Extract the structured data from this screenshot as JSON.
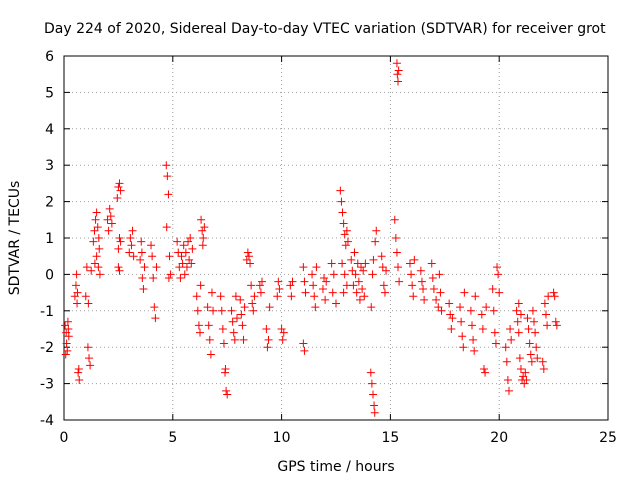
{
  "chart_data": {
    "type": "scatter",
    "title": "Day 224 of 2020, Sidereal Day-to-day VTEC variation (SDTVAR) for receiver grot",
    "xlabel": "GPS time / hours",
    "ylabel": "SDTVAR / TECUs",
    "xlim": [
      0,
      25
    ],
    "ylim": [
      -4,
      6
    ],
    "xticks": [
      0,
      5,
      10,
      15,
      20,
      25
    ],
    "yticks": [
      -4,
      -3,
      -2,
      -1,
      0,
      1,
      2,
      3,
      4,
      5,
      6
    ],
    "grid": true,
    "marker": "+",
    "color": "#ff0000",
    "series": [
      {
        "name": "SDTVAR",
        "points": [
          [
            0.05,
            -1.4
          ],
          [
            0.1,
            -1.6
          ],
          [
            0.12,
            -1.9
          ],
          [
            0.15,
            -2.1
          ],
          [
            0.18,
            -1.3
          ],
          [
            0.2,
            -1.5
          ],
          [
            0.08,
            -2.2
          ],
          [
            0.22,
            -1.7
          ],
          [
            0.5,
            -0.6
          ],
          [
            0.55,
            -0.3
          ],
          [
            0.6,
            -0.8
          ],
          [
            0.62,
            -0.5
          ],
          [
            0.65,
            -2.7
          ],
          [
            0.7,
            -2.9
          ],
          [
            0.68,
            -2.6
          ],
          [
            0.58,
            0.0
          ],
          [
            1.0,
            -0.6
          ],
          [
            1.05,
            0.2
          ],
          [
            1.1,
            -2.0
          ],
          [
            1.15,
            -2.3
          ],
          [
            1.2,
            -2.5
          ],
          [
            1.12,
            -0.8
          ],
          [
            1.25,
            0.1
          ],
          [
            1.35,
            0.9
          ],
          [
            1.4,
            1.2
          ],
          [
            1.45,
            1.5
          ],
          [
            1.5,
            1.7
          ],
          [
            1.55,
            1.3
          ],
          [
            1.6,
            1.0
          ],
          [
            1.42,
            0.3
          ],
          [
            1.5,
            0.5
          ],
          [
            1.58,
            0.2
          ],
          [
            1.62,
            0.7
          ],
          [
            1.65,
            0.0
          ],
          [
            2.0,
            1.5
          ],
          [
            2.05,
            1.2
          ],
          [
            2.1,
            1.8
          ],
          [
            2.15,
            1.6
          ],
          [
            2.2,
            1.4
          ],
          [
            2.5,
            2.4
          ],
          [
            2.55,
            2.5
          ],
          [
            2.6,
            2.3
          ],
          [
            2.45,
            2.1
          ],
          [
            2.5,
            0.7
          ],
          [
            2.55,
            1.0
          ],
          [
            2.6,
            0.9
          ],
          [
            2.5,
            0.2
          ],
          [
            2.55,
            0.1
          ],
          [
            3.0,
            0.6
          ],
          [
            3.05,
            1.0
          ],
          [
            3.1,
            0.8
          ],
          [
            3.15,
            1.2
          ],
          [
            3.2,
            0.5
          ],
          [
            3.5,
            0.4
          ],
          [
            3.55,
            0.9
          ],
          [
            3.6,
            -0.1
          ],
          [
            3.65,
            -0.4
          ],
          [
            3.7,
            0.2
          ],
          [
            3.58,
            0.6
          ],
          [
            4.0,
            0.8
          ],
          [
            4.05,
            0.5
          ],
          [
            4.1,
            -0.1
          ],
          [
            4.15,
            -0.9
          ],
          [
            4.2,
            -1.2
          ],
          [
            4.25,
            0.2
          ],
          [
            4.7,
            3.0
          ],
          [
            4.75,
            2.7
          ],
          [
            4.8,
            2.2
          ],
          [
            4.72,
            1.3
          ],
          [
            4.85,
            0.5
          ],
          [
            4.9,
            0.0
          ],
          [
            4.82,
            -0.1
          ],
          [
            5.2,
            0.9
          ],
          [
            5.25,
            0.6
          ],
          [
            5.3,
            0.2
          ],
          [
            5.35,
            -0.1
          ],
          [
            5.4,
            0.5
          ],
          [
            5.45,
            0.3
          ],
          [
            5.5,
            0.8
          ],
          [
            5.55,
            0.0
          ],
          [
            5.6,
            0.6
          ],
          [
            5.65,
            0.2
          ],
          [
            5.7,
            0.9
          ],
          [
            5.75,
            0.4
          ],
          [
            5.8,
            1.0
          ],
          [
            5.85,
            0.3
          ],
          [
            5.9,
            0.7
          ],
          [
            6.3,
            1.5
          ],
          [
            6.35,
            1.2
          ],
          [
            6.4,
            1.0
          ],
          [
            6.38,
            0.8
          ],
          [
            6.45,
            1.3
          ],
          [
            6.1,
            -0.6
          ],
          [
            6.15,
            -1.0
          ],
          [
            6.2,
            -1.4
          ],
          [
            6.25,
            -1.6
          ],
          [
            6.28,
            -0.3
          ],
          [
            6.6,
            -0.9
          ],
          [
            6.65,
            -1.4
          ],
          [
            6.7,
            -1.8
          ],
          [
            6.75,
            -2.2
          ],
          [
            6.8,
            -0.5
          ],
          [
            6.85,
            -1.0
          ],
          [
            7.2,
            -0.6
          ],
          [
            7.25,
            -1.0
          ],
          [
            7.3,
            -1.5
          ],
          [
            7.35,
            -1.9
          ],
          [
            7.4,
            -2.7
          ],
          [
            7.45,
            -3.2
          ],
          [
            7.5,
            -3.3
          ],
          [
            7.42,
            -2.6
          ],
          [
            7.7,
            -1.0
          ],
          [
            7.75,
            -1.3
          ],
          [
            7.8,
            -1.6
          ],
          [
            7.85,
            -1.8
          ],
          [
            7.9,
            -0.6
          ],
          [
            7.95,
            -1.2
          ],
          [
            8.1,
            -0.7
          ],
          [
            8.15,
            -1.1
          ],
          [
            8.2,
            -1.4
          ],
          [
            8.25,
            -1.8
          ],
          [
            8.3,
            -0.9
          ],
          [
            8.4,
            0.4
          ],
          [
            8.45,
            0.6
          ],
          [
            8.5,
            0.5
          ],
          [
            8.55,
            0.3
          ],
          [
            8.6,
            -0.3
          ],
          [
            8.65,
            -0.8
          ],
          [
            8.7,
            -1.0
          ],
          [
            8.75,
            -0.6
          ],
          [
            9.0,
            -0.3
          ],
          [
            9.05,
            -0.5
          ],
          [
            9.1,
            -0.2
          ],
          [
            9.3,
            -1.5
          ],
          [
            9.35,
            -2.0
          ],
          [
            9.4,
            -1.8
          ],
          [
            9.45,
            -0.9
          ],
          [
            9.8,
            -0.6
          ],
          [
            9.85,
            -0.2
          ],
          [
            9.9,
            -0.4
          ],
          [
            10.0,
            -1.5
          ],
          [
            10.05,
            -1.8
          ],
          [
            10.1,
            -1.6
          ],
          [
            10.4,
            -0.3
          ],
          [
            10.45,
            -0.6
          ],
          [
            10.5,
            -0.2
          ],
          [
            11.0,
            0.2
          ],
          [
            11.05,
            -0.2
          ],
          [
            11.1,
            -0.5
          ],
          [
            11.0,
            -1.9
          ],
          [
            11.05,
            -2.1
          ],
          [
            11.4,
            0.0
          ],
          [
            11.45,
            -0.3
          ],
          [
            11.5,
            -0.6
          ],
          [
            11.55,
            -0.9
          ],
          [
            11.6,
            0.2
          ],
          [
            11.9,
            -0.4
          ],
          [
            11.95,
            -0.1
          ],
          [
            12.0,
            -0.7
          ],
          [
            12.05,
            -0.2
          ],
          [
            12.3,
            0.3
          ],
          [
            12.35,
            -0.5
          ],
          [
            12.4,
            0.0
          ],
          [
            12.5,
            -0.8
          ],
          [
            12.7,
            2.3
          ],
          [
            12.75,
            2.0
          ],
          [
            12.8,
            1.7
          ],
          [
            12.85,
            1.4
          ],
          [
            12.9,
            1.1
          ],
          [
            12.95,
            0.8
          ],
          [
            13.0,
            1.2
          ],
          [
            13.05,
            0.9
          ],
          [
            12.78,
            0.3
          ],
          [
            12.9,
            0.0
          ],
          [
            13.0,
            -0.3
          ],
          [
            12.85,
            -0.5
          ],
          [
            13.2,
            0.4
          ],
          [
            13.25,
            0.1
          ],
          [
            13.3,
            -0.3
          ],
          [
            13.35,
            0.6
          ],
          [
            13.4,
            0.0
          ],
          [
            13.45,
            -0.5
          ],
          [
            13.5,
            0.3
          ],
          [
            13.55,
            -0.2
          ],
          [
            13.6,
            -0.7
          ],
          [
            13.65,
            0.2
          ],
          [
            13.7,
            -0.4
          ],
          [
            13.75,
            0.1
          ],
          [
            13.8,
            -0.6
          ],
          [
            13.85,
            0.3
          ],
          [
            14.1,
            -2.7
          ],
          [
            14.15,
            -3.0
          ],
          [
            14.2,
            -3.3
          ],
          [
            14.25,
            -3.6
          ],
          [
            14.28,
            -3.8
          ],
          [
            14.12,
            -0.9
          ],
          [
            14.18,
            0.0
          ],
          [
            14.22,
            0.4
          ],
          [
            14.3,
            0.9
          ],
          [
            14.35,
            1.2
          ],
          [
            14.6,
            0.5
          ],
          [
            14.65,
            0.2
          ],
          [
            14.7,
            -0.3
          ],
          [
            14.75,
            -0.5
          ],
          [
            14.8,
            0.1
          ],
          [
            15.2,
            1.5
          ],
          [
            15.25,
            1.0
          ],
          [
            15.3,
            0.6
          ],
          [
            15.35,
            0.2
          ],
          [
            15.4,
            -0.2
          ],
          [
            15.3,
            5.8
          ],
          [
            15.32,
            5.5
          ],
          [
            15.35,
            5.3
          ],
          [
            15.38,
            5.6
          ],
          [
            15.9,
            0.3
          ],
          [
            15.95,
            0.0
          ],
          [
            16.0,
            -0.3
          ],
          [
            16.05,
            -0.6
          ],
          [
            16.1,
            0.4
          ],
          [
            16.4,
            0.1
          ],
          [
            16.45,
            -0.2
          ],
          [
            16.5,
            -0.4
          ],
          [
            16.55,
            -0.7
          ],
          [
            16.9,
            0.3
          ],
          [
            16.95,
            -0.1
          ],
          [
            17.0,
            -0.4
          ],
          [
            17.1,
            -0.7
          ],
          [
            17.2,
            -0.9
          ],
          [
            17.25,
            0.0
          ],
          [
            17.3,
            -0.5
          ],
          [
            17.35,
            -1.0
          ],
          [
            17.7,
            -0.8
          ],
          [
            17.75,
            -1.1
          ],
          [
            17.8,
            -1.5
          ],
          [
            17.85,
            -1.2
          ],
          [
            18.2,
            -0.9
          ],
          [
            18.25,
            -1.3
          ],
          [
            18.3,
            -1.7
          ],
          [
            18.35,
            -2.0
          ],
          [
            18.4,
            -0.5
          ],
          [
            18.7,
            -1.0
          ],
          [
            18.75,
            -1.4
          ],
          [
            18.8,
            -1.8
          ],
          [
            18.85,
            -2.1
          ],
          [
            18.9,
            -0.6
          ],
          [
            19.2,
            -1.1
          ],
          [
            19.25,
            -1.5
          ],
          [
            19.3,
            -2.6
          ],
          [
            19.35,
            -2.7
          ],
          [
            19.4,
            -0.9
          ],
          [
            19.7,
            -0.4
          ],
          [
            19.75,
            -1.0
          ],
          [
            19.8,
            -1.6
          ],
          [
            19.85,
            -1.9
          ],
          [
            19.9,
            0.2
          ],
          [
            19.95,
            0.0
          ],
          [
            20.0,
            -0.5
          ],
          [
            20.3,
            -2.0
          ],
          [
            20.35,
            -2.4
          ],
          [
            20.4,
            -2.9
          ],
          [
            20.45,
            -3.2
          ],
          [
            20.5,
            -1.5
          ],
          [
            20.55,
            -1.8
          ],
          [
            20.8,
            -1.0
          ],
          [
            20.85,
            -1.3
          ],
          [
            20.9,
            -1.6
          ],
          [
            20.95,
            -2.3
          ],
          [
            21.0,
            -2.6
          ],
          [
            21.05,
            -2.9
          ],
          [
            21.1,
            -2.8
          ],
          [
            21.15,
            -3.0
          ],
          [
            21.2,
            -2.7
          ],
          [
            21.25,
            -2.9
          ],
          [
            20.9,
            -0.8
          ],
          [
            21.0,
            -1.1
          ],
          [
            21.3,
            -1.2
          ],
          [
            21.35,
            -1.5
          ],
          [
            21.4,
            -1.9
          ],
          [
            21.45,
            -2.2
          ],
          [
            21.5,
            -2.4
          ],
          [
            21.55,
            -1.0
          ],
          [
            21.6,
            -1.3
          ],
          [
            21.65,
            -1.6
          ],
          [
            21.7,
            -2.0
          ],
          [
            21.75,
            -2.3
          ],
          [
            22.0,
            -2.4
          ],
          [
            22.05,
            -2.6
          ],
          [
            22.1,
            -0.8
          ],
          [
            22.15,
            -1.1
          ],
          [
            22.2,
            -1.4
          ],
          [
            22.25,
            -0.6
          ],
          [
            22.5,
            -0.5
          ],
          [
            22.55,
            -0.6
          ],
          [
            22.6,
            -1.3
          ],
          [
            22.65,
            -1.4
          ]
        ]
      }
    ]
  }
}
